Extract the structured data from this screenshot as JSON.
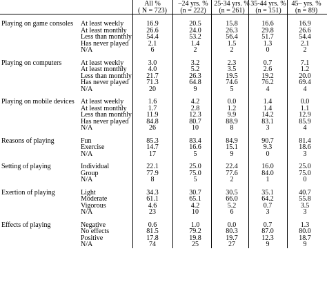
{
  "header": {
    "columns": [
      {
        "line1": "All  %",
        "line2": "( N = 723)"
      },
      {
        "line1": "–24 yrs. %",
        "line2": "(n = 222)"
      },
      {
        "line1": "25-34 yrs. %",
        "line2": "(n = 261)"
      },
      {
        "line1": "35-44 yrs. %",
        "line2": "(n = 151)"
      },
      {
        "line1": "45– yrs. %",
        "line2": "(n = 89)"
      }
    ]
  },
  "sections": [
    {
      "title": "Playing on game consoles",
      "rows": [
        {
          "label": "At least weekly",
          "values": [
            "16.9",
            "20.5",
            "15.8",
            "16.6",
            "16.9"
          ]
        },
        {
          "label": "At least monthly",
          "values": [
            "26.6",
            "24.0",
            "26.3",
            "29.8",
            "26.6"
          ]
        },
        {
          "label": "Less than monthly",
          "values": [
            "54.4",
            "53.2",
            "56.4",
            "51.7",
            "54.4"
          ]
        },
        {
          "label": "Has never played",
          "values": [
            "2.1",
            "1.4",
            "1.5",
            "1.3",
            "2.1"
          ]
        },
        {
          "label": "N/A",
          "values": [
            "6",
            "2",
            "2",
            "0",
            "2"
          ]
        }
      ]
    },
    {
      "title": "Playing on computers",
      "rows": [
        {
          "label": "At least weekly",
          "values": [
            "3.0",
            "3.2",
            "2.3",
            "0.7",
            "7.1"
          ]
        },
        {
          "label": "At least monthly",
          "values": [
            "4.0",
            "5.2",
            "3.5",
            "2.6",
            "1.2"
          ]
        },
        {
          "label": "Less than monthly",
          "values": [
            "21.7",
            "26.3",
            "19.5",
            "19.2",
            "20.0"
          ]
        },
        {
          "label": "Has never played",
          "values": [
            "71.3",
            "64.8",
            "74.6",
            "76.2",
            "69.4"
          ]
        },
        {
          "label": "N/A",
          "values": [
            "20",
            "9",
            "5",
            "4",
            "4"
          ]
        }
      ]
    },
    {
      "title": "Playing on mobile devices",
      "rows": [
        {
          "label": "At least weekly",
          "values": [
            "1.6",
            "4.2",
            "0.0",
            "1.4",
            "0.0"
          ]
        },
        {
          "label": "At least monthly",
          "values": [
            "1.7",
            "2.8",
            "1.2",
            "1.4",
            "1.1"
          ]
        },
        {
          "label": "Less than monthly",
          "values": [
            "11.9",
            "12.3",
            "9.9",
            "14.2",
            "12.9"
          ]
        },
        {
          "label": "Has never played",
          "values": [
            "84.8",
            "80.7",
            "88.9",
            "83.1",
            "85.9"
          ]
        },
        {
          "label": "N/A",
          "values": [
            "26",
            "10",
            "8",
            "3",
            "4"
          ]
        }
      ]
    },
    {
      "title": "Reasons of playing",
      "rows": [
        {
          "label": "Fun",
          "values": [
            "85.3",
            "83.4",
            "84.9",
            "90.7",
            "81.4"
          ]
        },
        {
          "label": "Exercise",
          "values": [
            "14.7",
            "16.6",
            "15.1",
            "9.3",
            "18.6"
          ]
        },
        {
          "label": "N/A",
          "values": [
            "17",
            "5",
            "9",
            "0",
            "3"
          ]
        }
      ]
    },
    {
      "title": "Setting of playing",
      "rows": [
        {
          "label": "Individual",
          "values": [
            "22.1",
            "25.0",
            "22.4",
            "16.0",
            "25.0"
          ]
        },
        {
          "label": "Group",
          "values": [
            "77.9",
            "75.0",
            "77.6",
            "84.0",
            "75.0"
          ]
        },
        {
          "label": "N/A",
          "values": [
            "8",
            "5",
            "2",
            "1",
            "0"
          ]
        }
      ]
    },
    {
      "title": "Exertion of playing",
      "rows": [
        {
          "label": "Light",
          "values": [
            "34.3",
            "30.7",
            "30.5",
            "35.1",
            "40.7"
          ]
        },
        {
          "label": "Moderate",
          "values": [
            "61.1",
            "65.1",
            "66.0",
            "64.2",
            "55.8"
          ]
        },
        {
          "label": "Vigorous",
          "values": [
            "4.6",
            "4.2",
            "5.2",
            "0.7",
            "3.5"
          ]
        },
        {
          "label": "N/A",
          "values": [
            "23",
            "10",
            "6",
            "3",
            "3"
          ]
        }
      ]
    },
    {
      "title": "Effects of playing",
      "rows": [
        {
          "label": "Negative",
          "values": [
            "0.6",
            "1.0",
            "0.0",
            "0.7",
            "1.3"
          ]
        },
        {
          "label": "No effects",
          "values": [
            "81.5",
            "79.2",
            "80.3",
            "87.0",
            "80.0"
          ]
        },
        {
          "label": "Positive",
          "values": [
            "17.8",
            "19.8",
            "19.7",
            "12.3",
            "18.7"
          ]
        },
        {
          "label": "N/A",
          "values": [
            "74",
            "25",
            "27",
            "9",
            "9"
          ]
        }
      ]
    }
  ]
}
